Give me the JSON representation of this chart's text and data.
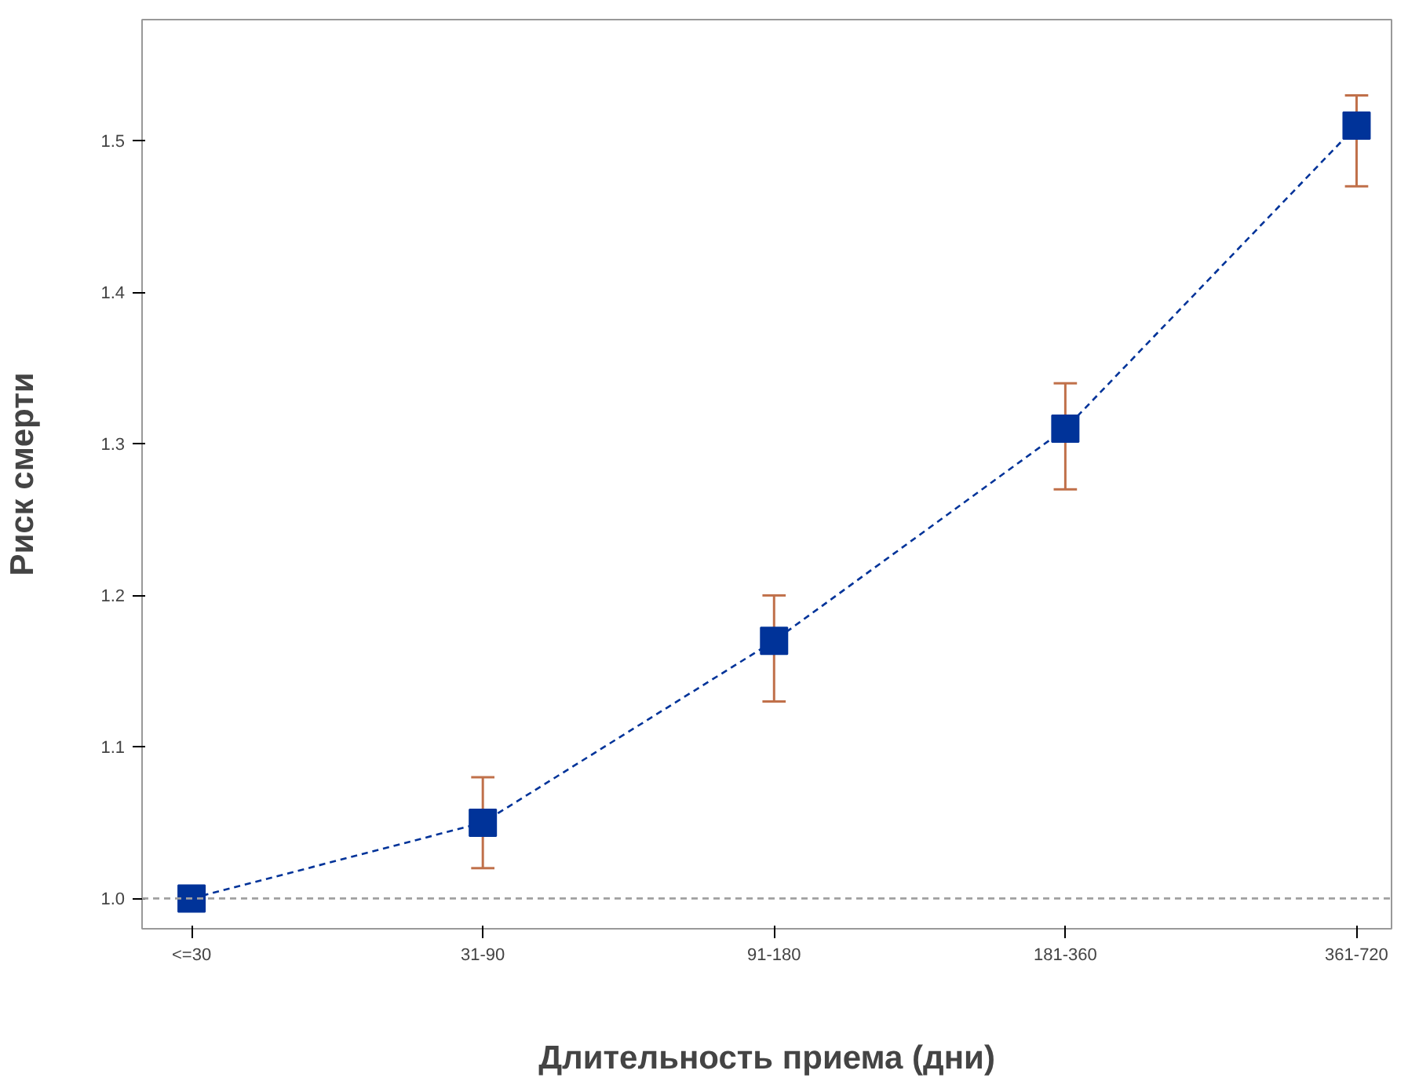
{
  "chart_data": {
    "type": "line",
    "xlabel": "Длительность приема (дни)",
    "ylabel": "Риск смерти",
    "categories": [
      "<=30",
      "31-90",
      "91-180",
      "181-360",
      "361-720"
    ],
    "series": [
      {
        "color": "#003399",
        "values": [
          1.0,
          1.05,
          1.17,
          1.31,
          1.51
        ],
        "errors": [
          null,
          [
            1.02,
            1.08
          ],
          [
            1.13,
            1.2
          ],
          [
            1.27,
            1.34
          ],
          [
            1.47,
            1.53
          ]
        ]
      }
    ],
    "ylim": [
      0.98,
      1.58
    ],
    "yticks": [
      {
        "value": 1,
        "label": "1.0"
      },
      1.1,
      1.2,
      1.3,
      1.4,
      1.5
    ],
    "ref_lines": [
      {
        "axis": "y",
        "value": 1,
        "color": "#a0a0a0",
        "line_style": "dashed"
      }
    ],
    "marker": "square",
    "line_style": "dashed",
    "grid": false
  }
}
